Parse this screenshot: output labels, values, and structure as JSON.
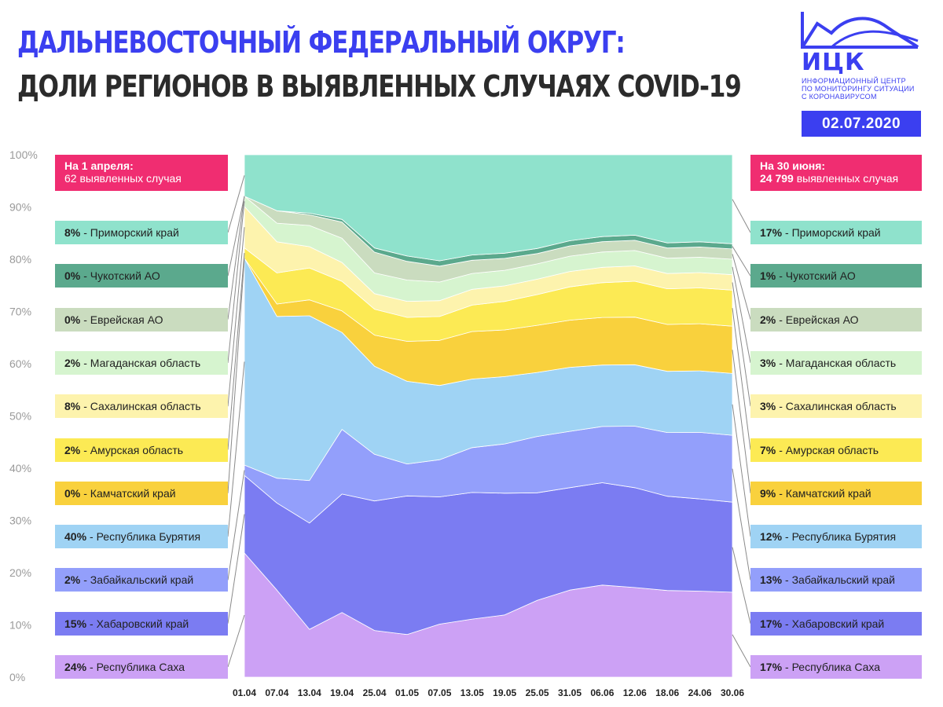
{
  "title_line1": "ДАЛЬНЕВОСТОЧНЫЙ ФЕДЕРАЛЬНЫЙ ОКРУГ:",
  "title_line2": "ДОЛИ РЕГИОНОВ В ВЫЯВЛЕННЫХ СЛУЧАЯХ COVID-19",
  "logo": {
    "name": "ИЦК",
    "subtitle_lines": [
      "ИНФОРМАЦИОННЫЙ ЦЕНТР",
      "ПО МОНИТОРИНГУ СИТУАЦИИ",
      "С КОРОНАВИРУСОМ"
    ],
    "color": "#3b3ff0"
  },
  "date": "02.07.2020",
  "left_header": {
    "line1": "На 1 апреля:",
    "line2": "62 выявленных случая",
    "color": "#f02d71"
  },
  "right_header": {
    "line1": "На 30 июня:",
    "line2_bold": "24 799",
    "line2_rest": " выявленных случая",
    "color": "#f02d71"
  },
  "chart_data": {
    "type": "area",
    "stacked": "percent",
    "ylim": [
      0,
      100
    ],
    "y_ticks": [
      "0%",
      "10%",
      "20%",
      "30%",
      "40%",
      "50%",
      "60%",
      "70%",
      "80%",
      "90%",
      "100%"
    ],
    "x_ticks": [
      "01.04",
      "07.04",
      "13.04",
      "19.04",
      "25.04",
      "01.05",
      "07.05",
      "13.05",
      "19.05",
      "25.05",
      "31.05",
      "06.06",
      "12.06",
      "18.06",
      "24.06",
      "30.06"
    ],
    "x_days": [
      0,
      6,
      12,
      18,
      24,
      30,
      36,
      42,
      48,
      54,
      60,
      66,
      72,
      78,
      84,
      90
    ],
    "series": [
      {
        "name": "Республика Саха",
        "color": "#cca1f5",
        "start": "24%",
        "end": "17%",
        "values": [
          24,
          14,
          9,
          12,
          9,
          8,
          10,
          11,
          12,
          15,
          17,
          18,
          17.5,
          17,
          16.8,
          16.5
        ]
      },
      {
        "name": "Хабаровский край",
        "color": "#7b7cf2",
        "start": "15%",
        "end": "17%",
        "values": [
          15,
          14,
          20,
          22,
          25,
          26,
          24,
          24,
          23.5,
          21,
          20,
          20,
          19.5,
          18.5,
          18,
          17.5
        ]
      },
      {
        "name": "Забайкальский край",
        "color": "#939ffb",
        "start": "2%",
        "end": "13%",
        "values": [
          2,
          4,
          8,
          12,
          9,
          6,
          7,
          8.5,
          9.5,
          11,
          11,
          11,
          12,
          12.5,
          13,
          13
        ]
      },
      {
        "name": "Республика Бурятия",
        "color": "#9fd3f4",
        "start": "40%",
        "end": "12%",
        "values": [
          40,
          26,
          31,
          18,
          17,
          15.5,
          14,
          13,
          13,
          12.5,
          12.5,
          12,
          12,
          12,
          12,
          12
        ]
      },
      {
        "name": "Камчатский край",
        "color": "#f9d13d",
        "start": "0%",
        "end": "9%",
        "values": [
          0,
          2,
          3,
          4,
          6,
          7.5,
          8.5,
          9,
          9,
          9.2,
          9.2,
          9.3,
          9.3,
          9.2,
          9.2,
          9.2
        ]
      },
      {
        "name": "Амурская область",
        "color": "#fcea54",
        "start": "2%",
        "end": "7%",
        "values": [
          2,
          5,
          6,
          5.5,
          5,
          4.5,
          4.5,
          5,
          5.5,
          6,
          6.5,
          6.8,
          7,
          7,
          7,
          7
        ]
      },
      {
        "name": "Сахалинская область",
        "color": "#fdf3ad",
        "start": "8%",
        "end": "3%",
        "values": [
          8,
          5,
          4,
          3.5,
          3,
          3,
          3,
          3,
          3,
          3,
          3,
          3,
          3,
          3,
          3,
          3
        ]
      },
      {
        "name": "Магаданская область",
        "color": "#d6f4cf",
        "start": "2%",
        "end": "3%",
        "values": [
          2,
          3,
          4,
          4.5,
          4,
          4,
          3.5,
          3,
          3,
          3,
          3,
          3,
          3,
          3,
          3,
          3
        ]
      },
      {
        "name": "Еврейская АО",
        "color": "#cadcbf",
        "start": "0%",
        "end": "2%",
        "values": [
          0,
          2,
          2,
          3,
          4,
          3.5,
          3,
          2.5,
          2.3,
          2,
          2,
          2,
          2,
          2,
          2,
          2
        ]
      },
      {
        "name": "Чукотский АО",
        "color": "#5ba98d",
        "start": "0%",
        "end": "1%",
        "values": [
          0,
          0,
          0.3,
          0.5,
          0.8,
          1,
          1,
          1,
          1,
          1,
          1,
          1,
          1,
          1,
          1,
          1
        ]
      },
      {
        "name": "Приморский край",
        "color": "#8fe2cc",
        "start": "8%",
        "end": "17%",
        "values": [
          8,
          9,
          11,
          12,
          18,
          19,
          20,
          19,
          19,
          18.3,
          16.8,
          16,
          15.7,
          17.3,
          17,
          17.3
        ]
      }
    ]
  }
}
